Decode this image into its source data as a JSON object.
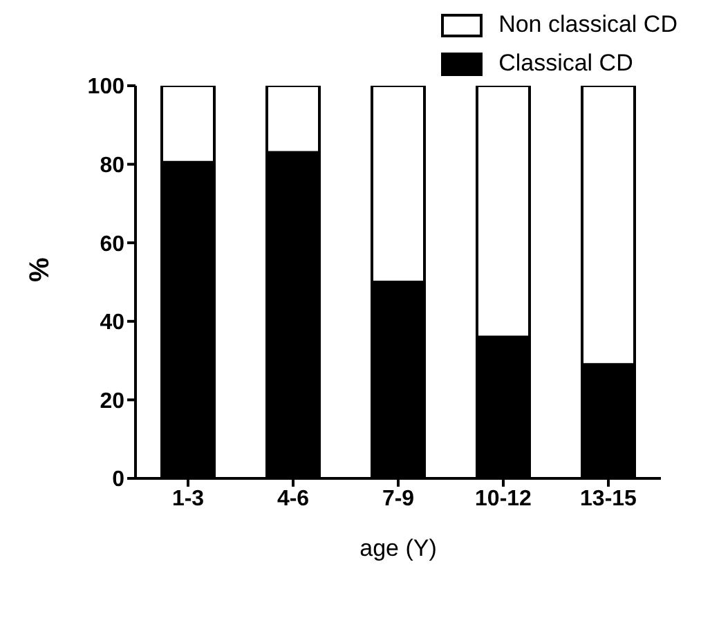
{
  "chart_data": {
    "type": "bar",
    "stacked": true,
    "xlabel": "age (Y)",
    "ylabel": "%",
    "categories": [
      "1-3",
      "4-6",
      "7-9",
      "10-12",
      "13-15"
    ],
    "series": [
      {
        "name": "Classical CD",
        "color": "#000000",
        "values": [
          80.5,
          83,
          50,
          36,
          29
        ]
      },
      {
        "name": "Non classical CD",
        "color": "#ffffff",
        "values": [
          19.5,
          17,
          50,
          64,
          71
        ]
      }
    ],
    "ylim": [
      0,
      100
    ],
    "yticks": [
      0,
      20,
      40,
      60,
      80,
      100
    ],
    "grid": false,
    "legend": "top right"
  }
}
